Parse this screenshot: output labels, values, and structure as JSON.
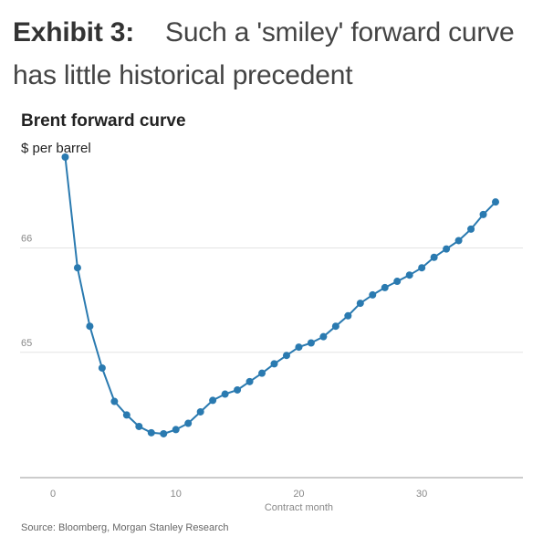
{
  "exhibit": {
    "label": "Exhibit 3:",
    "description": "Such a 'smiley' forward curve has little historical precedent"
  },
  "source": "Source: Bloomberg, Morgan Stanley Research",
  "chart_data": {
    "type": "line",
    "title": "Brent forward curve",
    "subtitle": "$ per barrel",
    "xlabel": "Contract month",
    "ylabel": "",
    "xlim": [
      0,
      36
    ],
    "ylim": [
      63.8,
      66.8
    ],
    "xticks": [
      0,
      10,
      20,
      30
    ],
    "yticks": [
      65,
      66
    ],
    "grid": "horizontal",
    "color": "#2a7ab0",
    "series": [
      {
        "x": [
          1,
          2,
          3,
          4,
          5,
          6,
          7,
          8,
          9,
          10,
          11,
          12,
          13,
          14,
          15,
          16,
          17,
          18,
          19,
          20,
          21,
          22,
          23,
          24,
          25,
          26,
          27,
          28,
          29,
          30,
          31,
          32,
          33,
          34,
          35,
          36
        ],
        "y": [
          66.87,
          65.81,
          65.25,
          64.85,
          64.53,
          64.4,
          64.29,
          64.23,
          64.22,
          64.26,
          64.32,
          64.43,
          64.54,
          64.6,
          64.64,
          64.72,
          64.8,
          64.89,
          64.97,
          65.05,
          65.09,
          65.15,
          65.25,
          65.35,
          65.47,
          65.55,
          65.62,
          65.68,
          65.74,
          65.81,
          65.91,
          65.99,
          66.07,
          66.18,
          66.32,
          66.44
        ]
      }
    ]
  }
}
